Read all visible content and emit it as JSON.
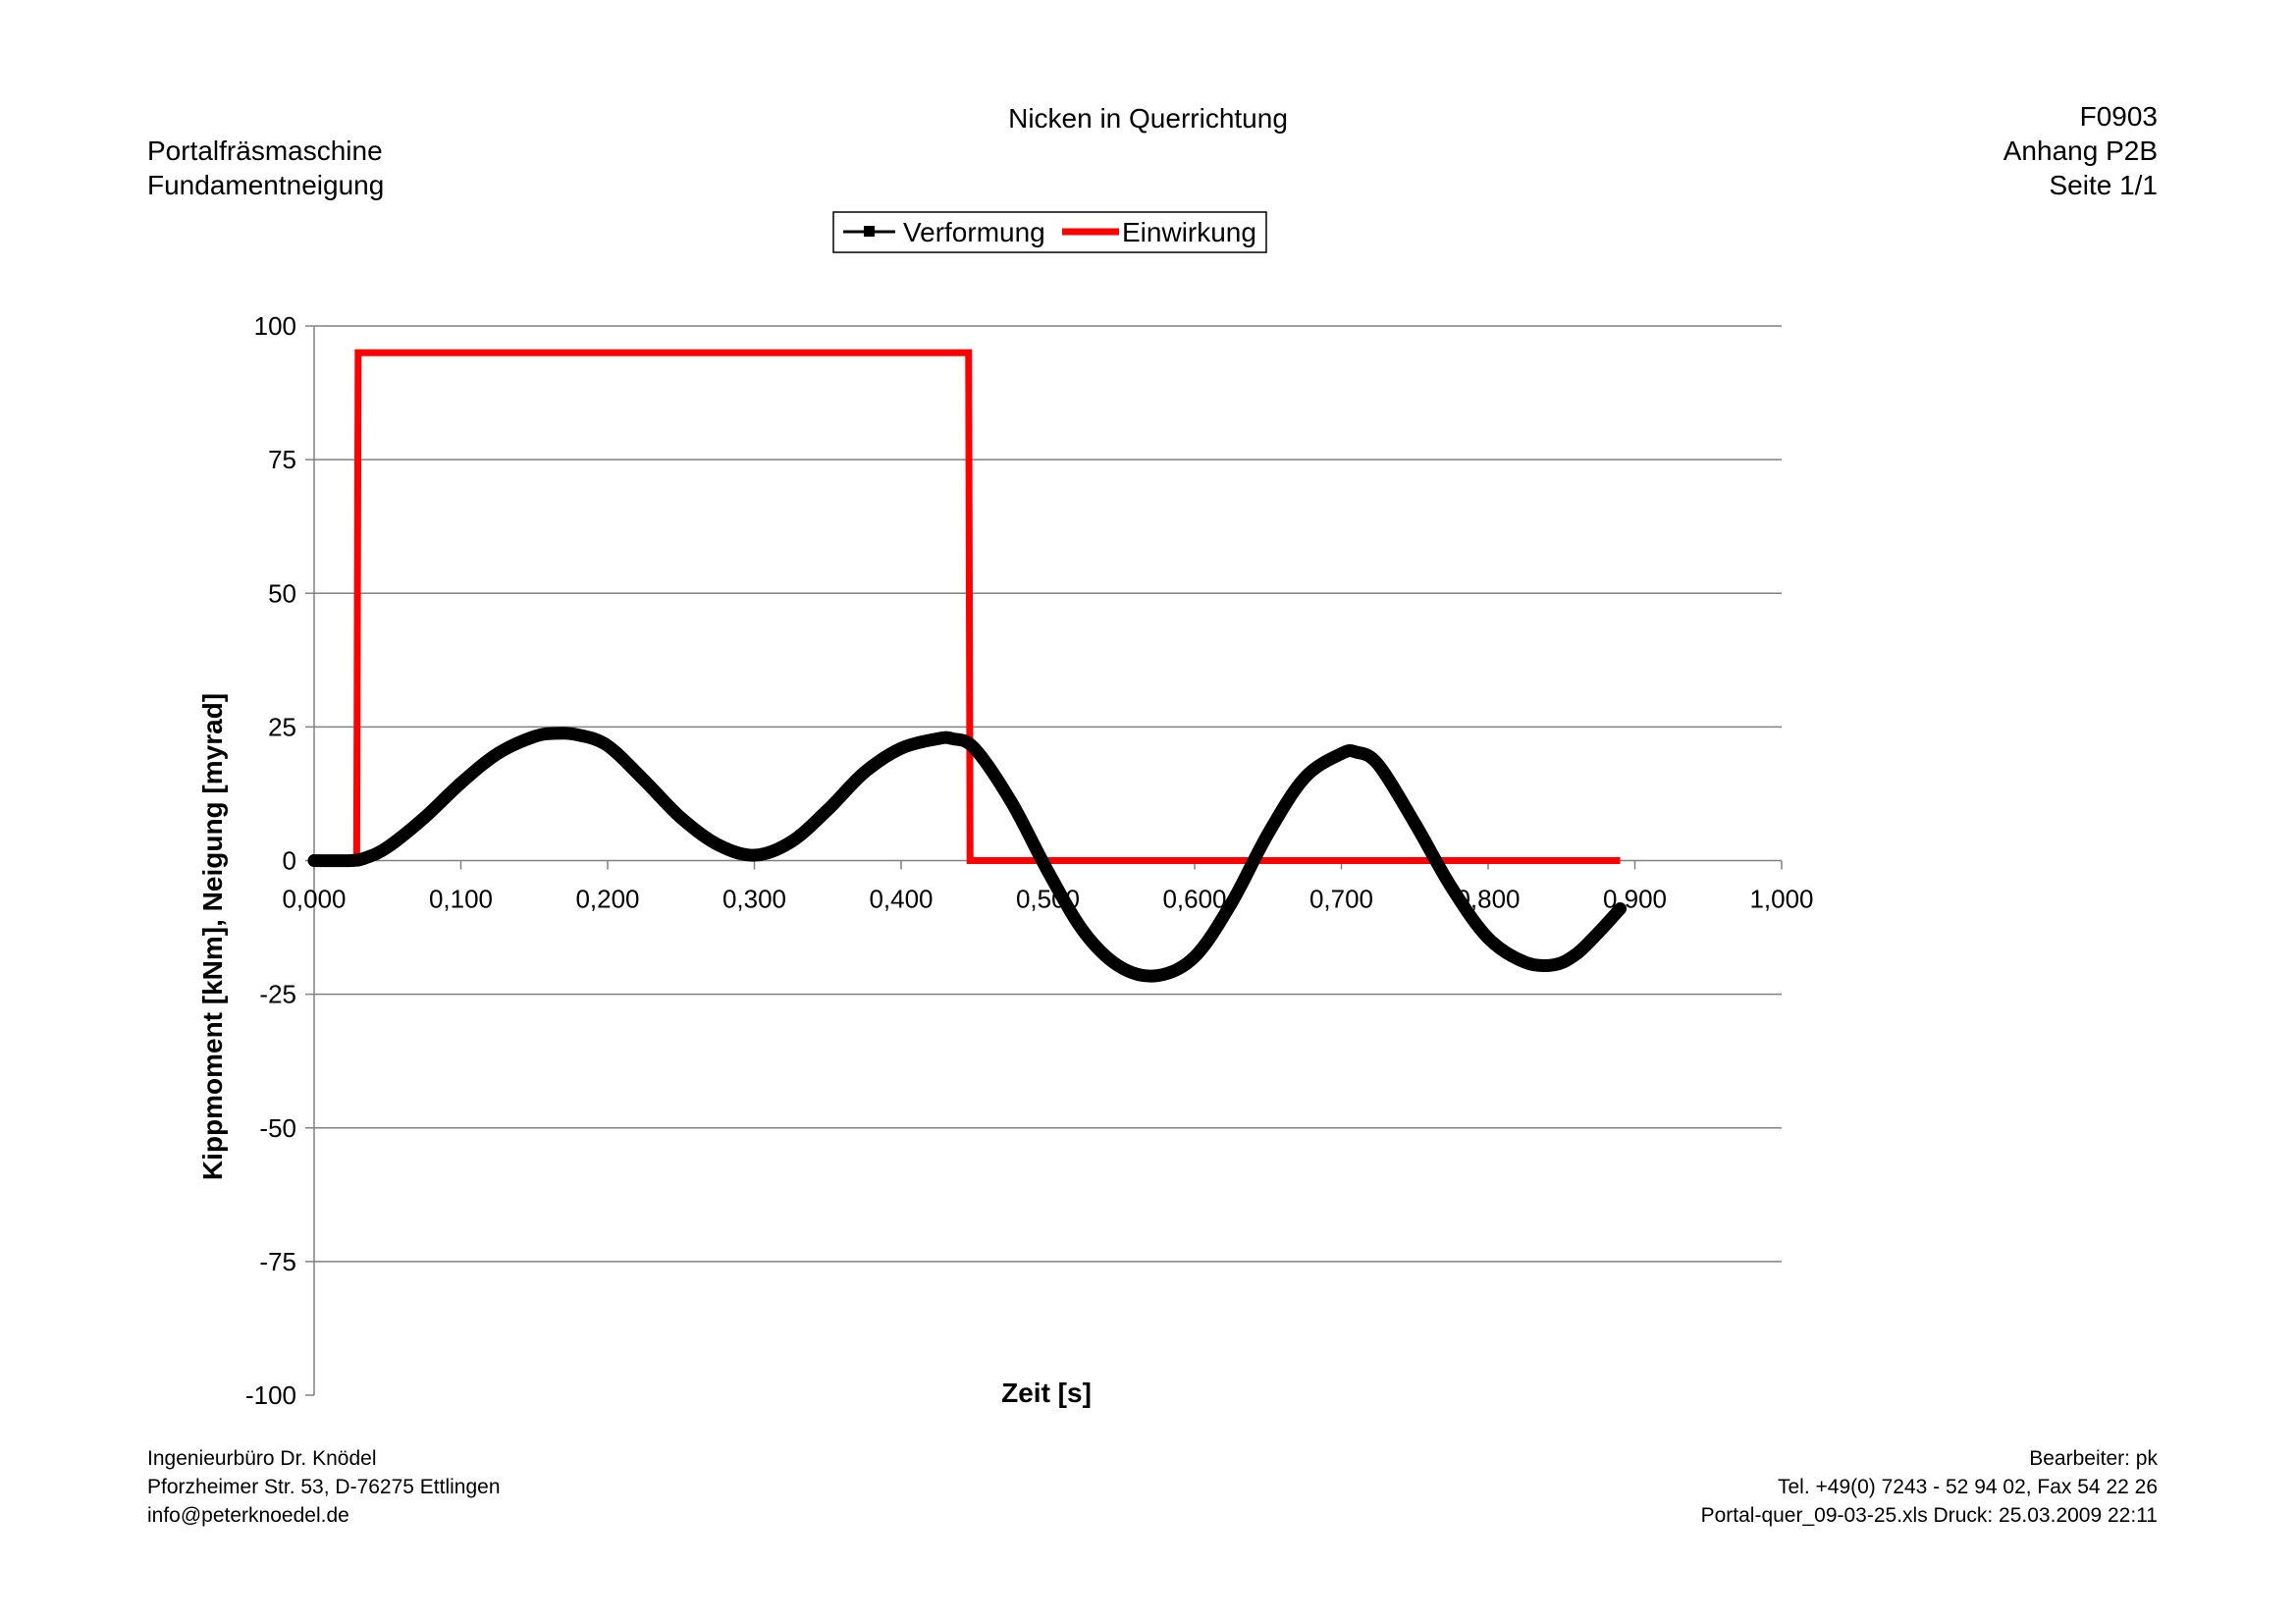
{
  "header": {
    "left": [
      "Portalfräsmaschine",
      "Fundamentneigung"
    ],
    "center": "Nicken in Querrichtung",
    "right": [
      "F0903",
      "Anhang P2B",
      "Seite 1/1"
    ]
  },
  "footer": {
    "left": [
      "Ingenieurbüro Dr. Knödel",
      "Pforzheimer Str. 53, D-76275 Ettlingen",
      "info@peterknoedel.de"
    ],
    "right": [
      "Bearbeiter: pk",
      "Tel. +49(0) 7243 - 52 94 02, Fax 54 22 26",
      "Portal-quer_09-03-25.xls Druck: 25.03.2009 22:11"
    ]
  },
  "colors": {
    "verformung": "#000000",
    "einwirkung": "#ff0000",
    "grid": "#808080",
    "axis": "#808080"
  },
  "chart_data": {
    "type": "line",
    "xlabel": "Zeit [s]",
    "ylabel": "Kippmoment [kNm], Neigung [myrad]",
    "xlim": [
      0,
      1.0
    ],
    "ylim": [
      -100,
      100
    ],
    "x_ticks": [
      "0,000",
      "0,100",
      "0,200",
      "0,300",
      "0,400",
      "0,500",
      "0,600",
      "0,700",
      "0,800",
      "0,900",
      "1,000"
    ],
    "y_ticks": [
      "100",
      "75",
      "50",
      "25",
      "0",
      "-25",
      "-50",
      "-75",
      "-100"
    ],
    "y_tick_values": [
      100,
      75,
      50,
      25,
      0,
      -25,
      -50,
      -75,
      -100
    ],
    "x_tick_values": [
      0,
      0.1,
      0.2,
      0.3,
      0.4,
      0.5,
      0.6,
      0.7,
      0.8,
      0.9,
      1.0
    ],
    "grid": "horizontal",
    "legend_position": "top-center",
    "series": [
      {
        "name": "Verformung",
        "color": "#000000",
        "x": [
          0.0,
          0.025,
          0.035,
          0.05,
          0.075,
          0.1,
          0.125,
          0.15,
          0.165,
          0.18,
          0.2,
          0.225,
          0.25,
          0.275,
          0.3,
          0.325,
          0.35,
          0.375,
          0.4,
          0.425,
          0.435,
          0.45,
          0.475,
          0.5,
          0.525,
          0.55,
          0.575,
          0.6,
          0.625,
          0.65,
          0.675,
          0.7,
          0.71,
          0.725,
          0.75,
          0.775,
          0.8,
          0.825,
          0.845,
          0.86,
          0.875,
          0.89
        ],
        "y": [
          0.0,
          0.0,
          0.5,
          2.5,
          8.0,
          14.5,
          20.0,
          23.2,
          23.8,
          23.5,
          21.5,
          15.0,
          8.0,
          3.0,
          1.0,
          3.5,
          9.5,
          16.5,
          21.0,
          22.8,
          22.8,
          21.0,
          11.0,
          -2.0,
          -13.5,
          -20.0,
          -21.5,
          -18.0,
          -8.0,
          5.0,
          15.5,
          20.0,
          20.3,
          18.0,
          7.0,
          -5.0,
          -14.5,
          -19.0,
          -19.5,
          -17.5,
          -13.5,
          -9.0
        ]
      },
      {
        "name": "Einwirkung",
        "color": "#ff0000",
        "x": [
          0.0,
          0.029,
          0.03,
          0.446,
          0.447,
          0.89
        ],
        "y": [
          0,
          0,
          95,
          95,
          0,
          0
        ]
      }
    ]
  }
}
